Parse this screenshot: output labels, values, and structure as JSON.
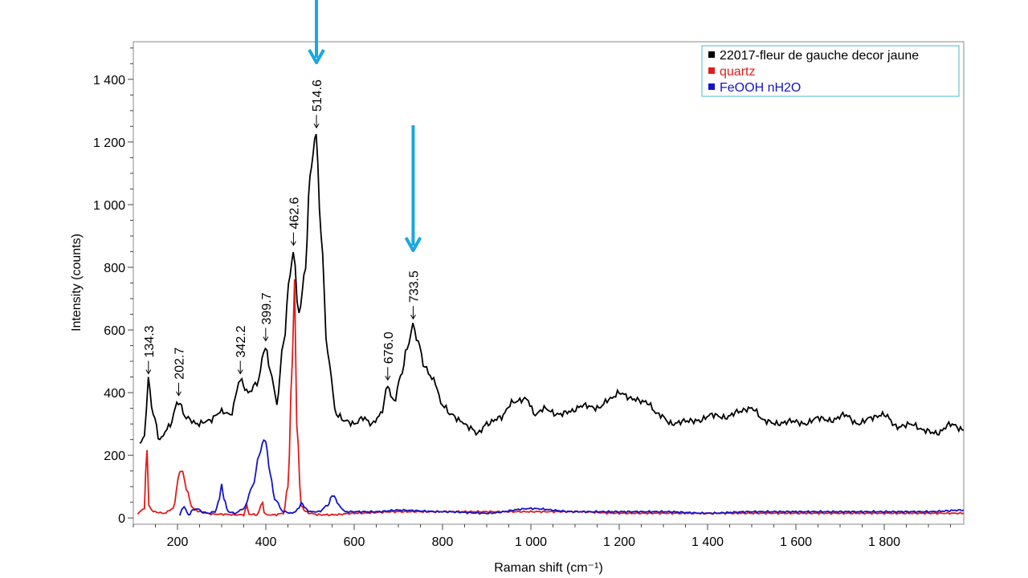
{
  "chart_data": {
    "type": "line",
    "xlabel": "Raman shift (cm⁻¹)",
    "ylabel": "Intensity (counts)",
    "xlim": [
      100,
      1980
    ],
    "ylim": [
      -20,
      1520
    ],
    "xticks": [
      {
        "v": 200,
        "label": "200"
      },
      {
        "v": 400,
        "label": "400"
      },
      {
        "v": 600,
        "label": "600"
      },
      {
        "v": 800,
        "label": "800"
      },
      {
        "v": 1000,
        "label": "1 000"
      },
      {
        "v": 1200,
        "label": "1 200"
      },
      {
        "v": 1400,
        "label": "1 400"
      },
      {
        "v": 1600,
        "label": "1 600"
      },
      {
        "v": 1800,
        "label": "1 800"
      }
    ],
    "yticks": [
      {
        "v": 0,
        "label": "0"
      },
      {
        "v": 200,
        "label": "200"
      },
      {
        "v": 400,
        "label": "400"
      },
      {
        "v": 600,
        "label": "600"
      },
      {
        "v": 800,
        "label": "800"
      },
      {
        "v": 1000,
        "label": "1 000"
      },
      {
        "v": 1200,
        "label": "1 200"
      },
      {
        "v": 1400,
        "label": "1 400"
      }
    ],
    "grid": false,
    "legend_position": "top-right",
    "series": [
      {
        "name": "22017-fleur de gauche decor jaune",
        "color": "#000000",
        "x": [
          115,
          125,
          134,
          145,
          160,
          180,
          202,
          220,
          245,
          270,
          300,
          320,
          342,
          360,
          380,
          399,
          410,
          425,
          440,
          455,
          462,
          475,
          490,
          500,
          514,
          525,
          540,
          560,
          580,
          600,
          620,
          640,
          660,
          676,
          690,
          705,
          720,
          733,
          745,
          760,
          780,
          800,
          820,
          840,
          860,
          880,
          900,
          930,
          960,
          990,
          1010,
          1030,
          1060,
          1090,
          1120,
          1150,
          1180,
          1200,
          1230,
          1260,
          1290,
          1320,
          1350,
          1380,
          1410,
          1440,
          1470,
          1500,
          1530,
          1560,
          1590,
          1620,
          1650,
          1680,
          1710,
          1740,
          1770,
          1800,
          1830,
          1860,
          1890,
          1920,
          1950,
          1980
        ],
        "y": [
          235,
          260,
          440,
          330,
          250,
          290,
          370,
          320,
          300,
          310,
          340,
          330,
          440,
          400,
          430,
          545,
          470,
          370,
          560,
          780,
          850,
          650,
          800,
          1100,
          1225,
          900,
          520,
          330,
          310,
          300,
          320,
          300,
          330,
          420,
          370,
          450,
          540,
          615,
          560,
          480,
          440,
          360,
          330,
          310,
          290,
          270,
          300,
          320,
          370,
          380,
          330,
          350,
          330,
          340,
          360,
          350,
          380,
          400,
          380,
          370,
          330,
          300,
          310,
          310,
          330,
          320,
          340,
          350,
          310,
          300,
          310,
          300,
          320,
          310,
          330,
          300,
          320,
          330,
          290,
          300,
          280,
          270,
          300,
          280
        ]
      },
      {
        "name": "quartz",
        "color": "#e11b1b",
        "x": [
          110,
          125,
          128,
          131,
          135,
          145,
          170,
          190,
          205,
          212,
          220,
          235,
          250,
          265,
          280,
          300,
          330,
          350,
          357,
          362,
          380,
          393,
          396,
          400,
          420,
          440,
          450,
          460,
          465,
          470,
          480,
          490,
          500,
          520,
          550,
          600,
          700,
          800,
          900,
          1000,
          1100,
          1200,
          1300,
          1400,
          1500,
          1600,
          1700,
          1800,
          1900,
          1980
        ],
        "y": [
          15,
          30,
          150,
          215,
          40,
          20,
          15,
          30,
          145,
          150,
          90,
          30,
          20,
          15,
          12,
          12,
          10,
          10,
          40,
          12,
          10,
          50,
          20,
          10,
          10,
          15,
          100,
          500,
          760,
          300,
          40,
          20,
          15,
          10,
          10,
          15,
          20,
          20,
          20,
          20,
          20,
          15,
          15,
          15,
          15,
          15,
          15,
          15,
          15,
          15
        ]
      },
      {
        "name": "FeOOH nH2O",
        "color": "#1414c8",
        "x": [
          205,
          210,
          215,
          225,
          235,
          245,
          255,
          270,
          285,
          295,
          300,
          305,
          315,
          330,
          350,
          370,
          385,
          395,
          400,
          410,
          420,
          440,
          460,
          475,
          480,
          490,
          500,
          520,
          540,
          550,
          555,
          565,
          580,
          600,
          650,
          700,
          800,
          900,
          1000,
          1100,
          1200,
          1300,
          1400,
          1500,
          1600,
          1700,
          1800,
          1900,
          1980
        ],
        "y": [
          5,
          30,
          35,
          10,
          25,
          30,
          20,
          15,
          20,
          60,
          110,
          60,
          20,
          15,
          30,
          100,
          200,
          250,
          240,
          140,
          60,
          20,
          15,
          30,
          50,
          30,
          20,
          20,
          40,
          70,
          70,
          40,
          20,
          20,
          20,
          25,
          20,
          15,
          30,
          20,
          20,
          20,
          15,
          20,
          20,
          20,
          20,
          20,
          25
        ]
      }
    ],
    "peak_labels": [
      {
        "x": 134.3,
        "y": 440,
        "text": "134.3"
      },
      {
        "x": 202.7,
        "y": 370,
        "text": "202.7"
      },
      {
        "x": 342.2,
        "y": 440,
        "text": "342.2"
      },
      {
        "x": 399.7,
        "y": 545,
        "text": "399.7"
      },
      {
        "x": 462.6,
        "y": 850,
        "text": "462.6"
      },
      {
        "x": 514.6,
        "y": 1225,
        "text": "514.6"
      },
      {
        "x": 676.0,
        "y": 420,
        "text": "676.0"
      },
      {
        "x": 733.5,
        "y": 615,
        "text": "733.5"
      }
    ],
    "highlight_arrows": [
      {
        "x": 514.6,
        "color": "#1aa7e0"
      },
      {
        "x": 733.5,
        "color": "#1aa7e0"
      }
    ]
  }
}
